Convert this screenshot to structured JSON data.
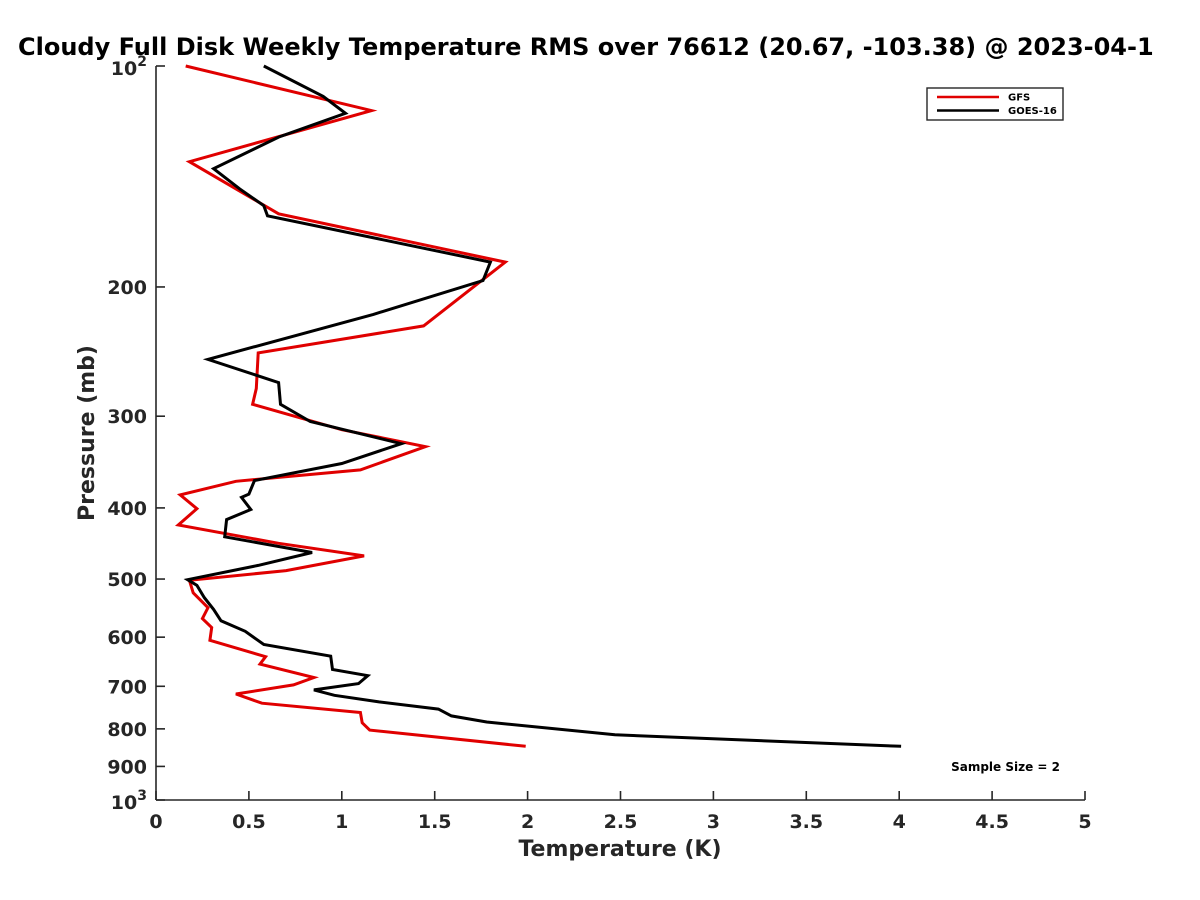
{
  "chart_data": {
    "type": "line",
    "title": "Cloudy Full Disk Weekly Temperature RMS over 76612 (20.67, -103.38) @ 2023-04-1",
    "xlabel": "Temperature (K)",
    "ylabel": "Pressure (mb)",
    "xlim": [
      0,
      5
    ],
    "ylim": [
      100,
      1000
    ],
    "y_scale": "log",
    "y_reversed": true,
    "x_ticks": [
      "0",
      "0.5",
      "1",
      "1.5",
      "2",
      "2.5",
      "3",
      "3.5",
      "4",
      "4.5",
      "5"
    ],
    "y_ticks": [
      {
        "value": 100,
        "base": "10",
        "exp": "2"
      },
      {
        "value": 200,
        "label": "200"
      },
      {
        "value": 300,
        "label": "300"
      },
      {
        "value": 400,
        "label": "400"
      },
      {
        "value": 500,
        "label": "500"
      },
      {
        "value": 600,
        "label": "600"
      },
      {
        "value": 700,
        "label": "700"
      },
      {
        "value": 800,
        "label": "800"
      },
      {
        "value": 900,
        "label": "900"
      },
      {
        "value": 1000,
        "base": "10",
        "exp": "3"
      }
    ],
    "legend_position": "top-right",
    "series": [
      {
        "name": "GFS",
        "color": "#e00000",
        "points": [
          [
            0.16,
            100
          ],
          [
            1.16,
            115
          ],
          [
            0.18,
            135
          ],
          [
            0.66,
            159
          ],
          [
            1.88,
            185
          ],
          [
            1.44,
            226
          ],
          [
            0.55,
            246
          ],
          [
            0.54,
            275
          ],
          [
            0.52,
            289
          ],
          [
            1.0,
            313
          ],
          [
            1.45,
            330
          ],
          [
            1.1,
            355
          ],
          [
            0.43,
            368
          ],
          [
            0.13,
            384
          ],
          [
            0.22,
            401
          ],
          [
            0.12,
            422
          ],
          [
            0.66,
            447
          ],
          [
            1.12,
            465
          ],
          [
            0.7,
            487
          ],
          [
            0.18,
            502
          ],
          [
            0.2,
            522
          ],
          [
            0.28,
            547
          ],
          [
            0.25,
            566
          ],
          [
            0.3,
            582
          ],
          [
            0.29,
            606
          ],
          [
            0.59,
            638
          ],
          [
            0.56,
            653
          ],
          [
            0.85,
            681
          ],
          [
            0.74,
            697
          ],
          [
            0.43,
            717
          ],
          [
            0.57,
            738
          ],
          [
            1.1,
            760
          ],
          [
            1.11,
            785
          ],
          [
            1.15,
            803
          ],
          [
            1.99,
            845
          ]
        ]
      },
      {
        "name": "GOES-16",
        "color": "#000000",
        "points": [
          [
            0.58,
            100
          ],
          [
            0.9,
            110
          ],
          [
            1.02,
            116
          ],
          [
            0.66,
            125
          ],
          [
            0.31,
            138
          ],
          [
            0.45,
            147
          ],
          [
            0.58,
            155
          ],
          [
            0.6,
            160
          ],
          [
            1.8,
            185
          ],
          [
            1.76,
            196
          ],
          [
            1.17,
            218
          ],
          [
            0.28,
            251
          ],
          [
            0.66,
            270
          ],
          [
            0.67,
            289
          ],
          [
            0.83,
            305
          ],
          [
            1.32,
            327
          ],
          [
            1.0,
            348
          ],
          [
            0.53,
            367
          ],
          [
            0.5,
            383
          ],
          [
            0.46,
            387
          ],
          [
            0.51,
            402
          ],
          [
            0.38,
            415
          ],
          [
            0.37,
            438
          ],
          [
            0.84,
            460
          ],
          [
            0.55,
            479
          ],
          [
            0.17,
            501
          ],
          [
            0.22,
            510
          ],
          [
            0.26,
            530
          ],
          [
            0.31,
            550
          ],
          [
            0.35,
            570
          ],
          [
            0.48,
            589
          ],
          [
            0.58,
            614
          ],
          [
            0.94,
            637
          ],
          [
            0.95,
            664
          ],
          [
            1.14,
            677
          ],
          [
            1.09,
            694
          ],
          [
            0.85,
            708
          ],
          [
            0.96,
            720
          ],
          [
            1.2,
            735
          ],
          [
            1.52,
            752
          ],
          [
            1.59,
            768
          ],
          [
            1.78,
            783
          ],
          [
            2.47,
            815
          ],
          [
            4.01,
            845
          ]
        ]
      }
    ],
    "annotation": "Sample Size = 2"
  }
}
